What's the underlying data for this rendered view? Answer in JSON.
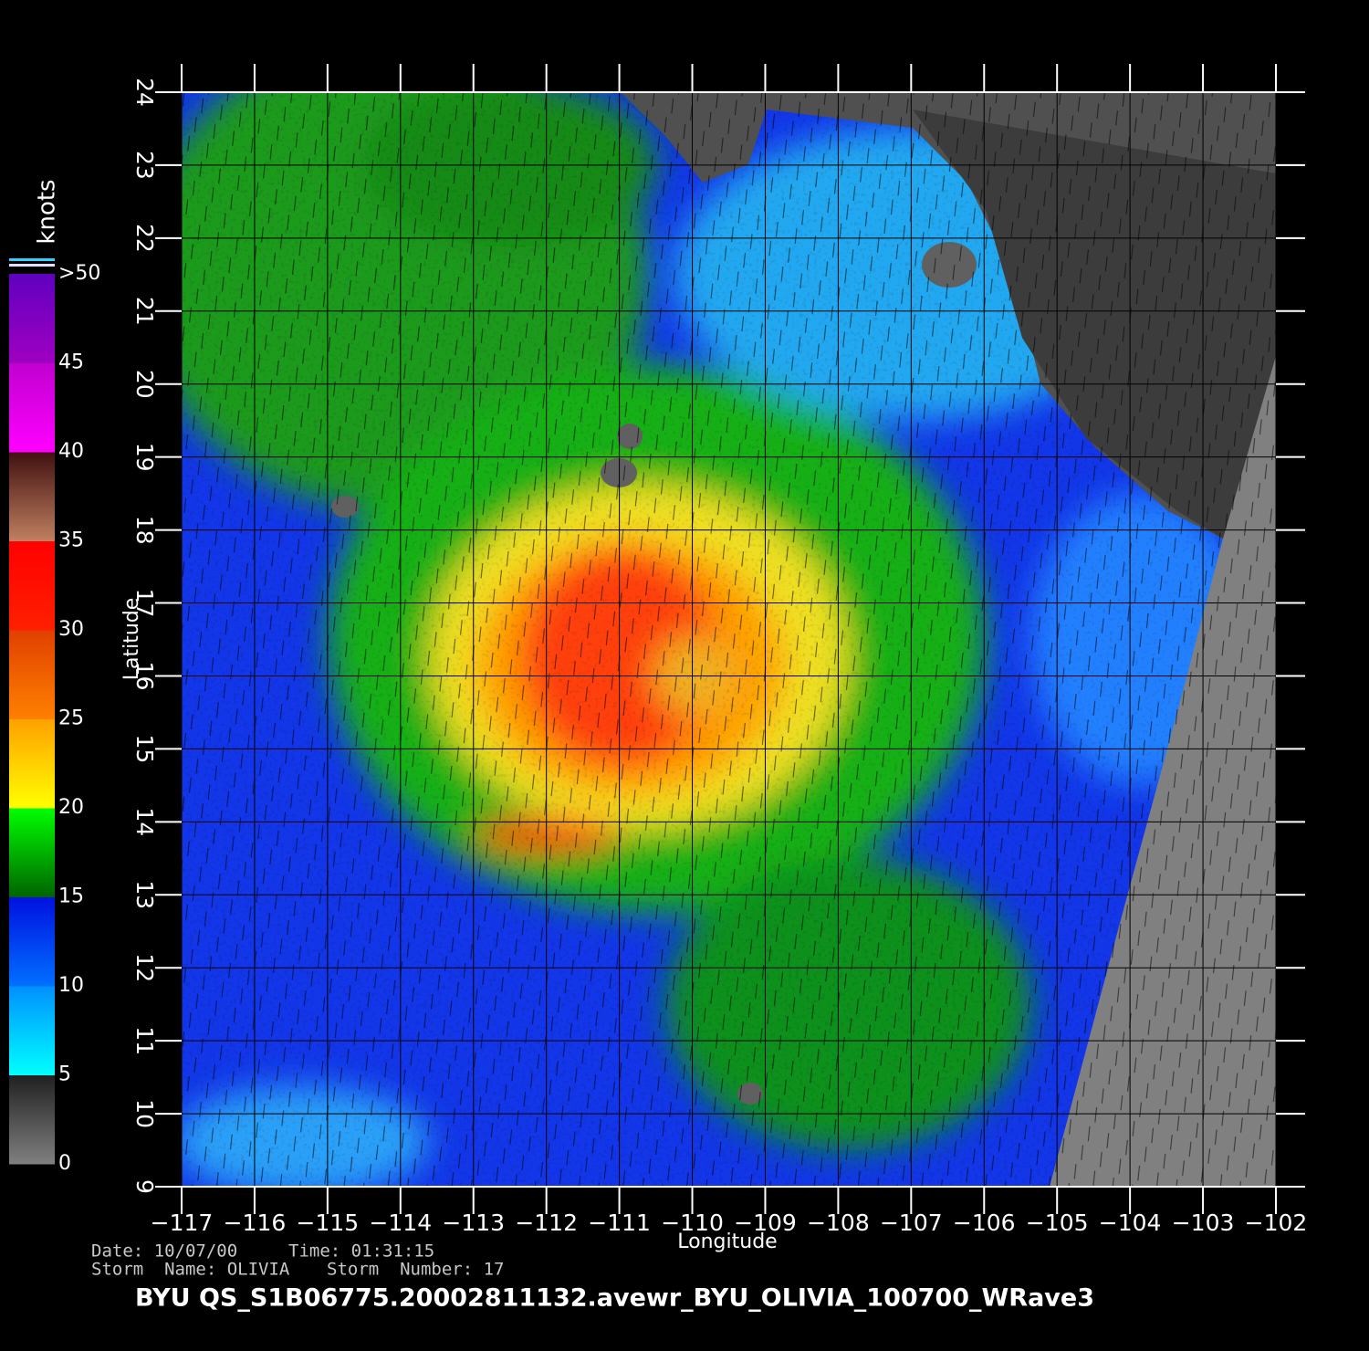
{
  "map": {
    "xlabel": "Longitude",
    "ylabel": "Latitude",
    "xlim": [
      -117,
      -102
    ],
    "ylim": [
      9,
      24
    ],
    "xticks": [
      {
        "value": -117,
        "label": "−117"
      },
      {
        "value": -116,
        "label": "−116"
      },
      {
        "value": -115,
        "label": "−115"
      },
      {
        "value": -114,
        "label": "−114"
      },
      {
        "value": -113,
        "label": "−113"
      },
      {
        "value": -112,
        "label": "−112"
      },
      {
        "value": -111,
        "label": "−111"
      },
      {
        "value": -110,
        "label": "−110"
      },
      {
        "value": -109,
        "label": "−109"
      },
      {
        "value": -108,
        "label": "−108"
      },
      {
        "value": -107,
        "label": "−107"
      },
      {
        "value": -106,
        "label": "−106"
      },
      {
        "value": -105,
        "label": "−105"
      },
      {
        "value": -104,
        "label": "−104"
      },
      {
        "value": -103,
        "label": "−103"
      },
      {
        "value": -102,
        "label": "−102"
      }
    ],
    "yticks": [
      9,
      10,
      11,
      12,
      13,
      14,
      15,
      16,
      17,
      18,
      19,
      20,
      21,
      22,
      23,
      24
    ],
    "grid": true,
    "colorbar": {
      "title": "knots",
      "ticks": [
        0,
        5,
        10,
        15,
        20,
        25,
        30,
        35,
        40,
        45,
        {
          "value": 50,
          "label": ">50"
        }
      ],
      "band_colors": [
        [
          "#808080",
          "#202020"
        ],
        [
          "#00ffff",
          "#0090ff"
        ],
        [
          "#0070ff",
          "#0010e0"
        ],
        [
          "#006400",
          "#00ff00"
        ],
        [
          "#ffff00",
          "#ffa000"
        ],
        [
          "#ff8000",
          "#e04000"
        ],
        [
          "#ff2000",
          "#ff0000"
        ],
        [
          "#c08060",
          "#401010"
        ],
        [
          "#ff00ff",
          "#c000d0"
        ],
        [
          "#a000c0",
          "#6000c0"
        ]
      ]
    }
  },
  "footer": {
    "date": "Date: 10/07/00",
    "time": "Time: 01:31:15",
    "storm_name": "Storm  Name: OLIVIA",
    "storm_number": "Storm  Number: 17",
    "file": "BYU  QS_S1B06775.20002811132.avewr_BYU_OLIVIA_100700_WRave3"
  }
}
